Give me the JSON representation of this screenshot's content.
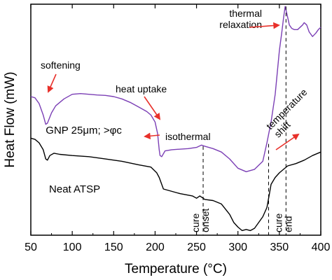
{
  "chart_data": {
    "type": "line",
    "xlabel": "Temperature (°C)",
    "ylabel": "Heat Flow (mW)",
    "xlim": [
      50,
      400
    ],
    "ylim": [
      0,
      100
    ],
    "x_ticks": [
      50,
      100,
      150,
      200,
      250,
      300,
      350,
      400
    ],
    "y_ticks_shown": false,
    "series": [
      {
        "name": "GNP 25μm; >φc",
        "color": "#7b3fb5",
        "points": [
          [
            50,
            60
          ],
          [
            55,
            59.5
          ],
          [
            60,
            57
          ],
          [
            65,
            52
          ],
          [
            68,
            48
          ],
          [
            70,
            48.5
          ],
          [
            75,
            53
          ],
          [
            80,
            56
          ],
          [
            90,
            59
          ],
          [
            100,
            61
          ],
          [
            110,
            61.3
          ],
          [
            120,
            61
          ],
          [
            130,
            60.7
          ],
          [
            140,
            60.5
          ],
          [
            150,
            60
          ],
          [
            160,
            59
          ],
          [
            170,
            57.5
          ],
          [
            180,
            55.5
          ],
          [
            190,
            53.5
          ],
          [
            195,
            52
          ],
          [
            200,
            49
          ],
          [
            203,
            44
          ],
          [
            205,
            37
          ],
          [
            206,
            34.5
          ],
          [
            208,
            34
          ],
          [
            212,
            36.5
          ],
          [
            220,
            37
          ],
          [
            240,
            37.5
          ],
          [
            250,
            38
          ],
          [
            256,
            39
          ],
          [
            260,
            38.5
          ],
          [
            270,
            37.5
          ],
          [
            280,
            36
          ],
          [
            290,
            33
          ],
          [
            300,
            29
          ],
          [
            310,
            27.5
          ],
          [
            320,
            28.5
          ],
          [
            330,
            32
          ],
          [
            335,
            40
          ],
          [
            340,
            49
          ],
          [
            345,
            61
          ],
          [
            350,
            80
          ],
          [
            353,
            88
          ],
          [
            355,
            94
          ],
          [
            357,
            99
          ],
          [
            359,
            96
          ],
          [
            362,
            91
          ],
          [
            365,
            89.5
          ],
          [
            368,
            89
          ],
          [
            372,
            89
          ],
          [
            378,
            91
          ],
          [
            380,
            92
          ],
          [
            383,
            91
          ],
          [
            386,
            88
          ],
          [
            390,
            86
          ],
          [
            394,
            87.5
          ],
          [
            397,
            89
          ],
          [
            400,
            90
          ]
        ]
      },
      {
        "name": "Neat ATSP",
        "color": "#000000",
        "points": [
          [
            50,
            42
          ],
          [
            55,
            41.5
          ],
          [
            60,
            40
          ],
          [
            65,
            37
          ],
          [
            68,
            33
          ],
          [
            70,
            32.5
          ],
          [
            73,
            34.5
          ],
          [
            78,
            35.5
          ],
          [
            85,
            35
          ],
          [
            100,
            34.5
          ],
          [
            120,
            34
          ],
          [
            140,
            33
          ],
          [
            160,
            32
          ],
          [
            180,
            30.5
          ],
          [
            195,
            29.5
          ],
          [
            202,
            27
          ],
          [
            205,
            25
          ],
          [
            210,
            20
          ],
          [
            230,
            18
          ],
          [
            245,
            17
          ],
          [
            250,
            16
          ],
          [
            254,
            17
          ],
          [
            258,
            16
          ],
          [
            260,
            15.5
          ],
          [
            270,
            15
          ],
          [
            280,
            13.5
          ],
          [
            290,
            9
          ],
          [
            295,
            5.5
          ],
          [
            300,
            3.5
          ],
          [
            305,
            2
          ],
          [
            310,
            2.5
          ],
          [
            315,
            2
          ],
          [
            320,
            3
          ],
          [
            325,
            5.5
          ],
          [
            330,
            8
          ],
          [
            335,
            12
          ],
          [
            338,
            18
          ],
          [
            340,
            22
          ],
          [
            345,
            25
          ],
          [
            350,
            27
          ],
          [
            355,
            28.5
          ],
          [
            360,
            30
          ],
          [
            370,
            31
          ],
          [
            380,
            32.5
          ],
          [
            390,
            34.5
          ],
          [
            400,
            36
          ]
        ]
      }
    ],
    "vertical_markers": [
      {
        "x": 258,
        "label": "cure onset"
      },
      {
        "x": 337,
        "label": ""
      },
      {
        "x": 358,
        "label": "cure end"
      }
    ],
    "annotations": [
      {
        "text": "softening"
      },
      {
        "text": "heat uptake"
      },
      {
        "text": "isothermal"
      },
      {
        "text": "thermal relaxation"
      },
      {
        "text": "temperature shift"
      }
    ],
    "arrow_color": "#e8302a"
  }
}
